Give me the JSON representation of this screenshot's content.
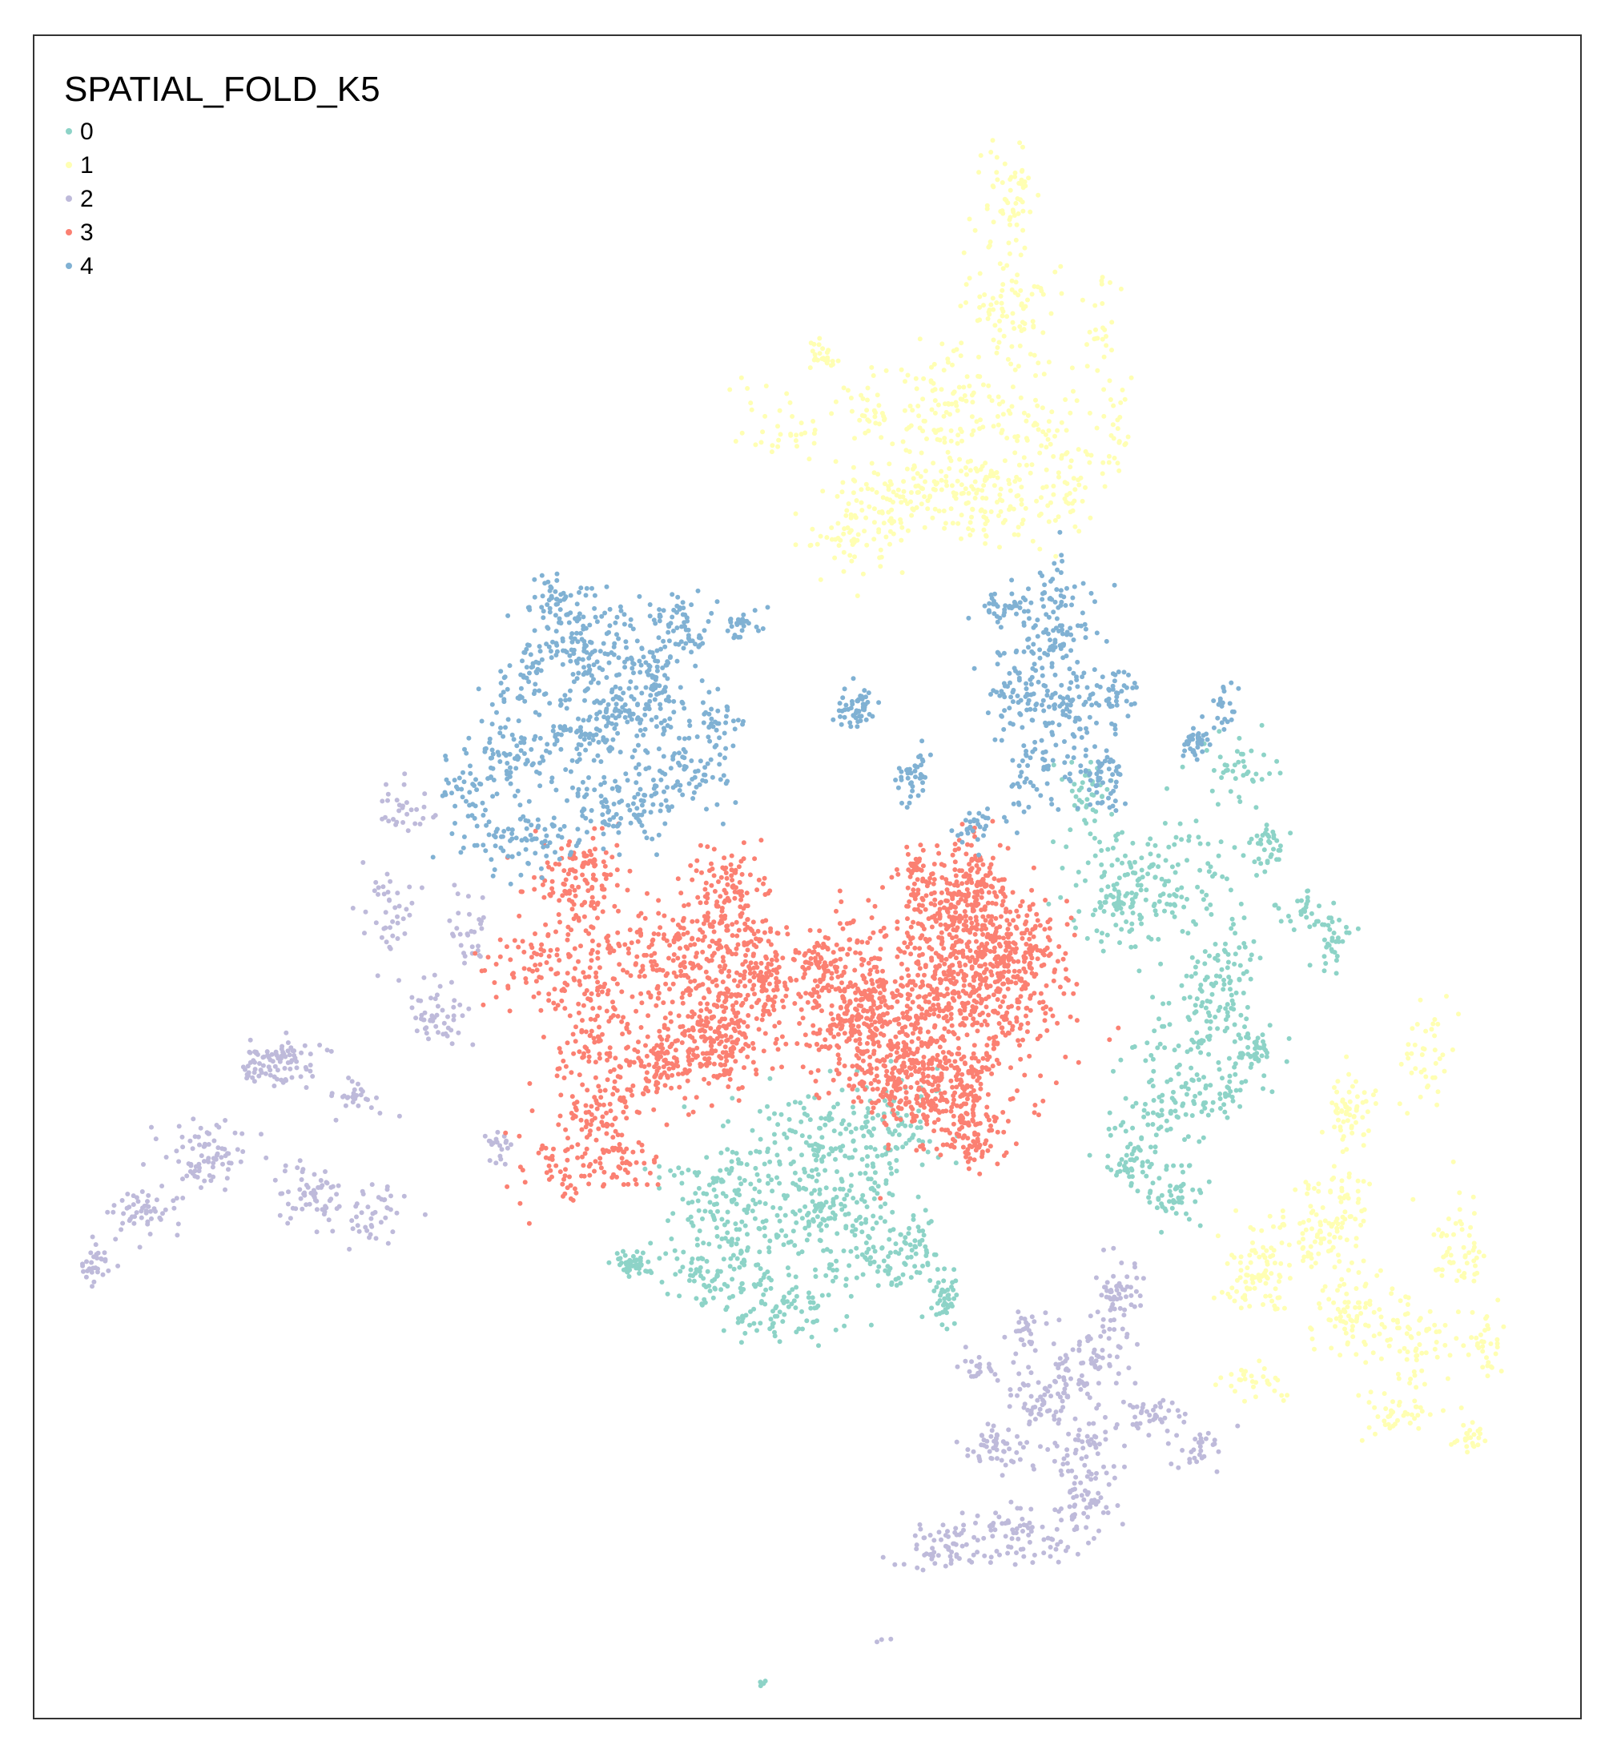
{
  "chart_data": {
    "type": "scatter",
    "title": "",
    "xlabel": "",
    "ylabel": "",
    "grid": false,
    "axes_visible": false,
    "legend_position": "top-left",
    "legend": {
      "title": "SPATIAL_FOLD_K5",
      "entries": [
        {
          "label": "0",
          "color": "#8DD3C7"
        },
        {
          "label": "1",
          "color": "#FFFFB3"
        },
        {
          "label": "2",
          "color": "#BEBADA"
        },
        {
          "label": "3",
          "color": "#FB8072"
        },
        {
          "label": "4",
          "color": "#80B1D3"
        }
      ]
    },
    "xlim": [
      0,
      100
    ],
    "ylim": [
      0,
      100
    ],
    "series": [
      {
        "label": "0",
        "color": "#8DD3C7",
        "clusters": [
          [
            72,
            50,
            4.0,
            3.0,
            140
          ],
          [
            77,
            56,
            2.5,
            2.5,
            90
          ],
          [
            70,
            52,
            2.0,
            3.0,
            60
          ],
          [
            75,
            60,
            3.0,
            2.5,
            80
          ],
          [
            79,
            60,
            1.2,
            1.2,
            40
          ],
          [
            80,
            48,
            1.0,
            1.0,
            35
          ],
          [
            82,
            52,
            1.6,
            1.2,
            30
          ],
          [
            84,
            54,
            1.2,
            1.2,
            30
          ],
          [
            68,
            45,
            1.5,
            1.5,
            40
          ],
          [
            73,
            64,
            3.0,
            2.0,
            60
          ],
          [
            71,
            67,
            1.5,
            1.5,
            50
          ],
          [
            74,
            69,
            2.0,
            1.5,
            50
          ],
          [
            77,
            63,
            2.0,
            1.5,
            35
          ],
          [
            78,
            44,
            2.0,
            2.0,
            40
          ],
          [
            45,
            69,
            4.0,
            2.5,
            120
          ],
          [
            50,
            66,
            4.0,
            2.5,
            130
          ],
          [
            55,
            65,
            3.0,
            2.5,
            100
          ],
          [
            52,
            70,
            3.0,
            2.0,
            110
          ],
          [
            46,
            73,
            3.0,
            2.5,
            90
          ],
          [
            54,
            73,
            3.0,
            2.0,
            60
          ],
          [
            57,
            72,
            1.0,
            2.0,
            40
          ],
          [
            59,
            75,
            0.8,
            1.5,
            40
          ],
          [
            43,
            74,
            1.5,
            1.5,
            40
          ],
          [
            39,
            73,
            1.5,
            0.6,
            50
          ],
          [
            48,
            76,
            3.0,
            1.5,
            70
          ],
          [
            47,
            98,
            0.4,
            0.4,
            4
          ]
        ]
      },
      {
        "label": "1",
        "color": "#FFFFB3",
        "clusters": [
          [
            63,
            10,
            1.5,
            3.0,
            60
          ],
          [
            63,
            16,
            2.5,
            3.0,
            80
          ],
          [
            59,
            22,
            3.0,
            3.0,
            90
          ],
          [
            64,
            23,
            3.0,
            3.0,
            80
          ],
          [
            57,
            27,
            4.0,
            2.5,
            120
          ],
          [
            62,
            28,
            3.0,
            2.5,
            90
          ],
          [
            53,
            30,
            3.0,
            2.5,
            70
          ],
          [
            67,
            27,
            1.5,
            2.0,
            40
          ],
          [
            48,
            23,
            3.0,
            2.0,
            35
          ],
          [
            51,
            19,
            1.0,
            1.0,
            25
          ],
          [
            54,
            22,
            1.5,
            1.5,
            30
          ],
          [
            69,
            17,
            1.0,
            3.0,
            25
          ],
          [
            70,
            24,
            1.0,
            3.0,
            25
          ],
          [
            85,
            64,
            1.2,
            2.0,
            60
          ],
          [
            84,
            70,
            2.0,
            2.0,
            60
          ],
          [
            82,
            72,
            3.0,
            2.0,
            80
          ],
          [
            79,
            74,
            2.0,
            2.0,
            60
          ],
          [
            85,
            76,
            2.0,
            2.0,
            60
          ],
          [
            89,
            77,
            3.0,
            3.0,
            80
          ],
          [
            92,
            72,
            1.5,
            2.5,
            50
          ],
          [
            90,
            61,
            1.5,
            2.5,
            40
          ],
          [
            93,
            83,
            1.0,
            1.0,
            25
          ],
          [
            88,
            82,
            2.0,
            1.5,
            40
          ],
          [
            79,
            80,
            2.0,
            1.0,
            30
          ],
          [
            94,
            78,
            1.0,
            1.5,
            30
          ]
        ]
      },
      {
        "label": "2",
        "color": "#BEBADA",
        "clusters": [
          [
            16,
            61,
            2.5,
            1.2,
            90
          ],
          [
            11,
            67,
            2.0,
            2.0,
            80
          ],
          [
            7,
            70,
            2.0,
            1.5,
            50
          ],
          [
            4,
            73,
            1.0,
            1.0,
            30
          ],
          [
            18,
            69,
            2.0,
            1.5,
            60
          ],
          [
            22,
            70,
            1.5,
            1.5,
            40
          ],
          [
            21,
            63,
            1.5,
            1.0,
            30
          ],
          [
            26,
            58,
            1.5,
            2.0,
            50
          ],
          [
            23,
            52,
            1.5,
            2.0,
            40
          ],
          [
            24,
            46,
            1.5,
            1.5,
            30
          ],
          [
            28,
            53,
            1.2,
            1.5,
            30
          ],
          [
            30,
            66,
            1.0,
            1.0,
            20
          ],
          [
            70,
            75,
            1.2,
            2.0,
            60
          ],
          [
            68,
            79,
            2.0,
            2.0,
            80
          ],
          [
            65,
            81,
            2.0,
            1.5,
            60
          ],
          [
            62,
            84,
            2.0,
            1.2,
            50
          ],
          [
            68,
            84,
            2.0,
            1.2,
            50
          ],
          [
            64,
            89,
            3.0,
            1.5,
            80
          ],
          [
            68,
            87,
            1.5,
            1.5,
            50
          ],
          [
            59,
            90,
            2.5,
            1.2,
            60
          ],
          [
            72,
            82,
            2.0,
            1.0,
            40
          ],
          [
            75,
            84,
            1.5,
            1.0,
            30
          ],
          [
            64,
            77,
            1.0,
            1.0,
            25
          ],
          [
            61,
            79,
            1.0,
            1.0,
            20
          ],
          [
            55,
            95,
            0.4,
            0.4,
            3
          ]
        ]
      },
      {
        "label": "3",
        "color": "#FB8072",
        "clusters": [
          [
            59,
            57,
            6.0,
            5.0,
            600
          ],
          [
            53,
            58,
            3.0,
            3.0,
            250
          ],
          [
            60,
            52,
            3.0,
            3.0,
            200
          ],
          [
            63,
            55,
            3.0,
            3.0,
            200
          ],
          [
            57,
            62,
            4.0,
            2.0,
            250
          ],
          [
            60,
            64,
            2.5,
            2.0,
            100
          ],
          [
            46,
            56,
            3.0,
            3.0,
            220
          ],
          [
            44,
            60,
            2.5,
            2.5,
            200
          ],
          [
            45,
            51,
            2.5,
            2.5,
            130
          ],
          [
            41,
            55,
            2.5,
            3.0,
            130
          ],
          [
            40,
            61,
            2.0,
            2.0,
            100
          ],
          [
            36,
            55,
            2.5,
            3.0,
            100
          ],
          [
            36,
            60,
            2.5,
            2.5,
            80
          ],
          [
            32,
            55,
            2.5,
            2.0,
            60
          ],
          [
            34,
            50,
            2.5,
            2.0,
            50
          ],
          [
            37,
            64,
            2.5,
            1.5,
            70
          ],
          [
            38,
            67,
            2.0,
            1.5,
            50
          ],
          [
            34,
            67,
            2.5,
            2.0,
            60
          ],
          [
            36,
            50,
            2.0,
            2.0,
            70
          ],
          [
            51,
            55,
            1.5,
            1.5,
            60
          ],
          [
            61,
            50,
            1.5,
            2.0,
            60
          ],
          [
            57,
            50,
            0.8,
            1.5,
            40
          ],
          [
            61,
            66,
            2.0,
            1.2,
            50
          ]
        ]
      },
      {
        "label": "4",
        "color": "#80B1D3",
        "clusters": [
          [
            36,
            36,
            2.5,
            2.5,
            120
          ],
          [
            38,
            40,
            2.5,
            2.0,
            100
          ],
          [
            35,
            42,
            3.0,
            2.0,
            90
          ],
          [
            40,
            38,
            2.0,
            2.5,
            80
          ],
          [
            42,
            35,
            2.0,
            1.5,
            60
          ],
          [
            32,
            38,
            2.0,
            2.0,
            60
          ],
          [
            31,
            43,
            2.0,
            2.0,
            60
          ],
          [
            34,
            34,
            1.5,
            1.5,
            50
          ],
          [
            38,
            46,
            3.0,
            2.0,
            100
          ],
          [
            42,
            44,
            2.5,
            2.0,
            70
          ],
          [
            44,
            41,
            1.5,
            1.5,
            40
          ],
          [
            28,
            45,
            1.5,
            2.0,
            40
          ],
          [
            30,
            48,
            2.0,
            1.5,
            40
          ],
          [
            33,
            48,
            2.0,
            1.5,
            40
          ],
          [
            46,
            35,
            1.5,
            0.8,
            25
          ],
          [
            53,
            40,
            1.0,
            1.0,
            50
          ],
          [
            57,
            44,
            1.0,
            1.2,
            40
          ],
          [
            66,
            35,
            2.0,
            3.0,
            110
          ],
          [
            64,
            39,
            2.0,
            2.0,
            80
          ],
          [
            67,
            40,
            1.5,
            2.5,
            60
          ],
          [
            69,
            44,
            1.5,
            2.0,
            60
          ],
          [
            65,
            44,
            1.5,
            2.0,
            50
          ],
          [
            63,
            34,
            1.5,
            1.0,
            40
          ],
          [
            70,
            39,
            1.0,
            2.0,
            40
          ],
          [
            61,
            47,
            1.0,
            1.0,
            30
          ],
          [
            75,
            42,
            0.8,
            0.8,
            40
          ],
          [
            77,
            40,
            0.6,
            1.0,
            20
          ]
        ]
      }
    ]
  }
}
